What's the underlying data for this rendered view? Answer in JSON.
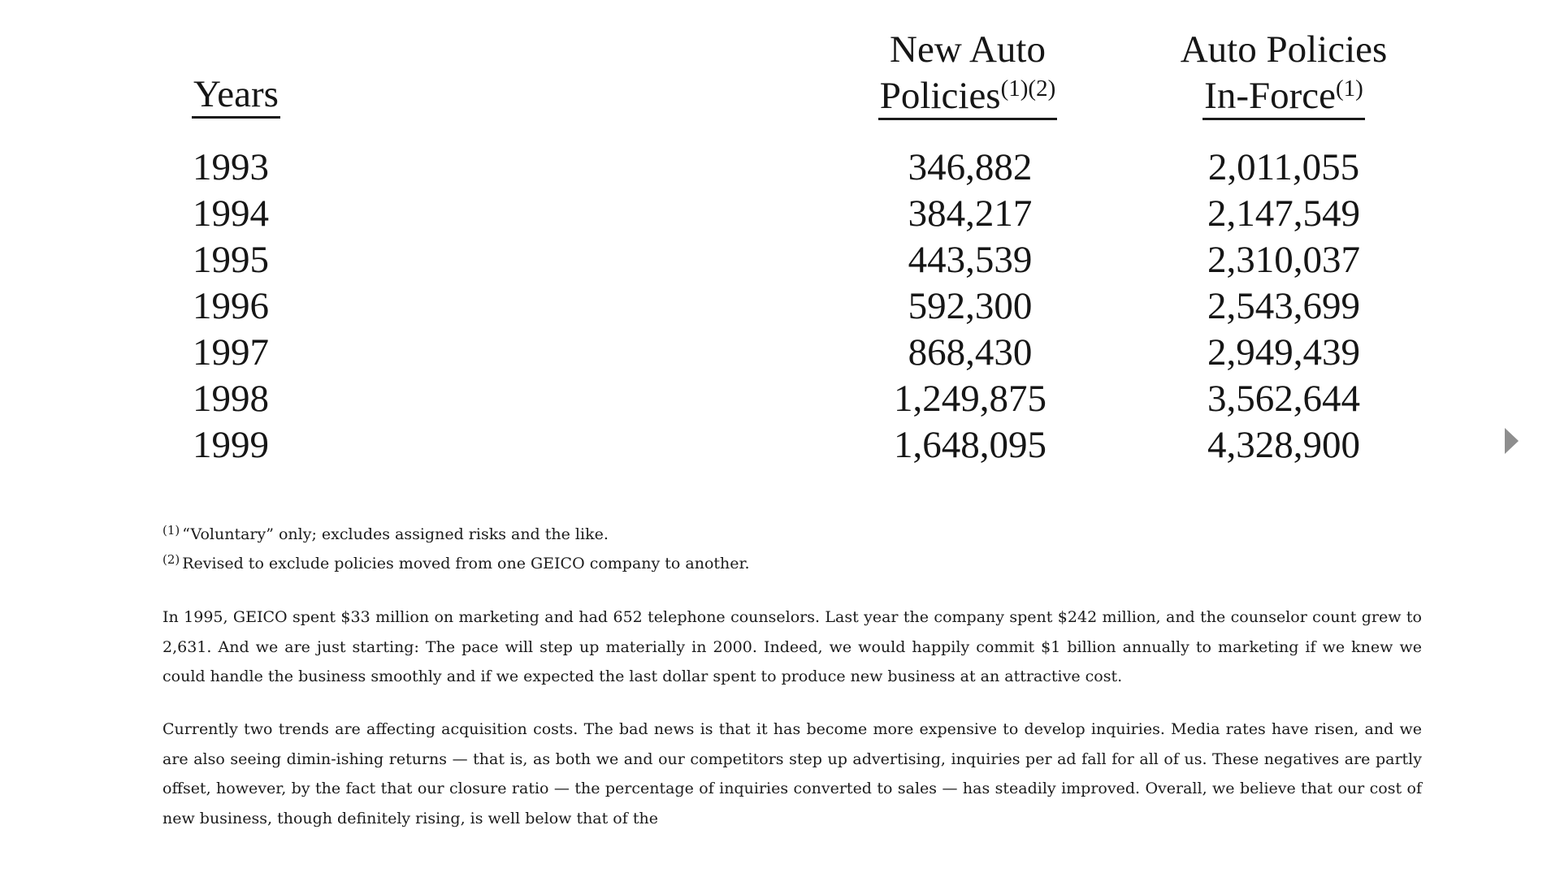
{
  "table": {
    "headers": {
      "years": "Years",
      "new_auto_line1": "New Auto",
      "new_auto_line2": "Policies",
      "new_auto_sup": "(1)(2)",
      "inforce_line1": "Auto Policies",
      "inforce_line2": "In-Force",
      "inforce_sup": "(1)"
    },
    "rows": [
      {
        "year": "1993",
        "new_auto": "346,882",
        "in_force": "2,011,055"
      },
      {
        "year": "1994",
        "new_auto": "384,217",
        "in_force": "2,147,549"
      },
      {
        "year": "1995",
        "new_auto": "443,539",
        "in_force": "2,310,037"
      },
      {
        "year": "1996",
        "new_auto": "592,300",
        "in_force": "2,543,699"
      },
      {
        "year": "1997",
        "new_auto": "868,430",
        "in_force": "2,949,439"
      },
      {
        "year": "1998",
        "new_auto": "1,249,875",
        "in_force": "3,562,644"
      },
      {
        "year": "1999",
        "new_auto": "1,648,095",
        "in_force": "4,328,900"
      }
    ]
  },
  "footnotes": [
    {
      "marker": "(1)",
      "text": "“Voluntary” only; excludes assigned risks and the like."
    },
    {
      "marker": "(2)",
      "text": "Revised to exclude policies moved from one GEICO company to another."
    }
  ],
  "paragraphs": [
    "In 1995, GEICO spent $33 million on marketing and had 652 telephone counselors. Last year the company spent $242 million, and the counselor count grew to 2,631. And we are just starting: The pace will step up materially in 2000. Indeed, we would happily commit $1 billion annually to marketing if we knew we could handle the business smoothly and if we expected the last dollar spent to produce new business at an attractive cost.",
    "Currently two trends are affecting acquisition costs. The bad news is that it has become more expensive to develop inquiries. Media rates have risen, and we are also seeing dimin-ishing returns — that is, as both we and our competitors step up advertising, inquiries per ad fall for all of us. These negatives are partly offset, however, by the fact that our closure ratio — the percentage of inquiries converted to sales — has steadily improved. Overall, we believe that our cost of new business, though definitely rising, is well below that of the"
  ],
  "nav": {
    "next_icon": "next-page-arrow-icon"
  }
}
